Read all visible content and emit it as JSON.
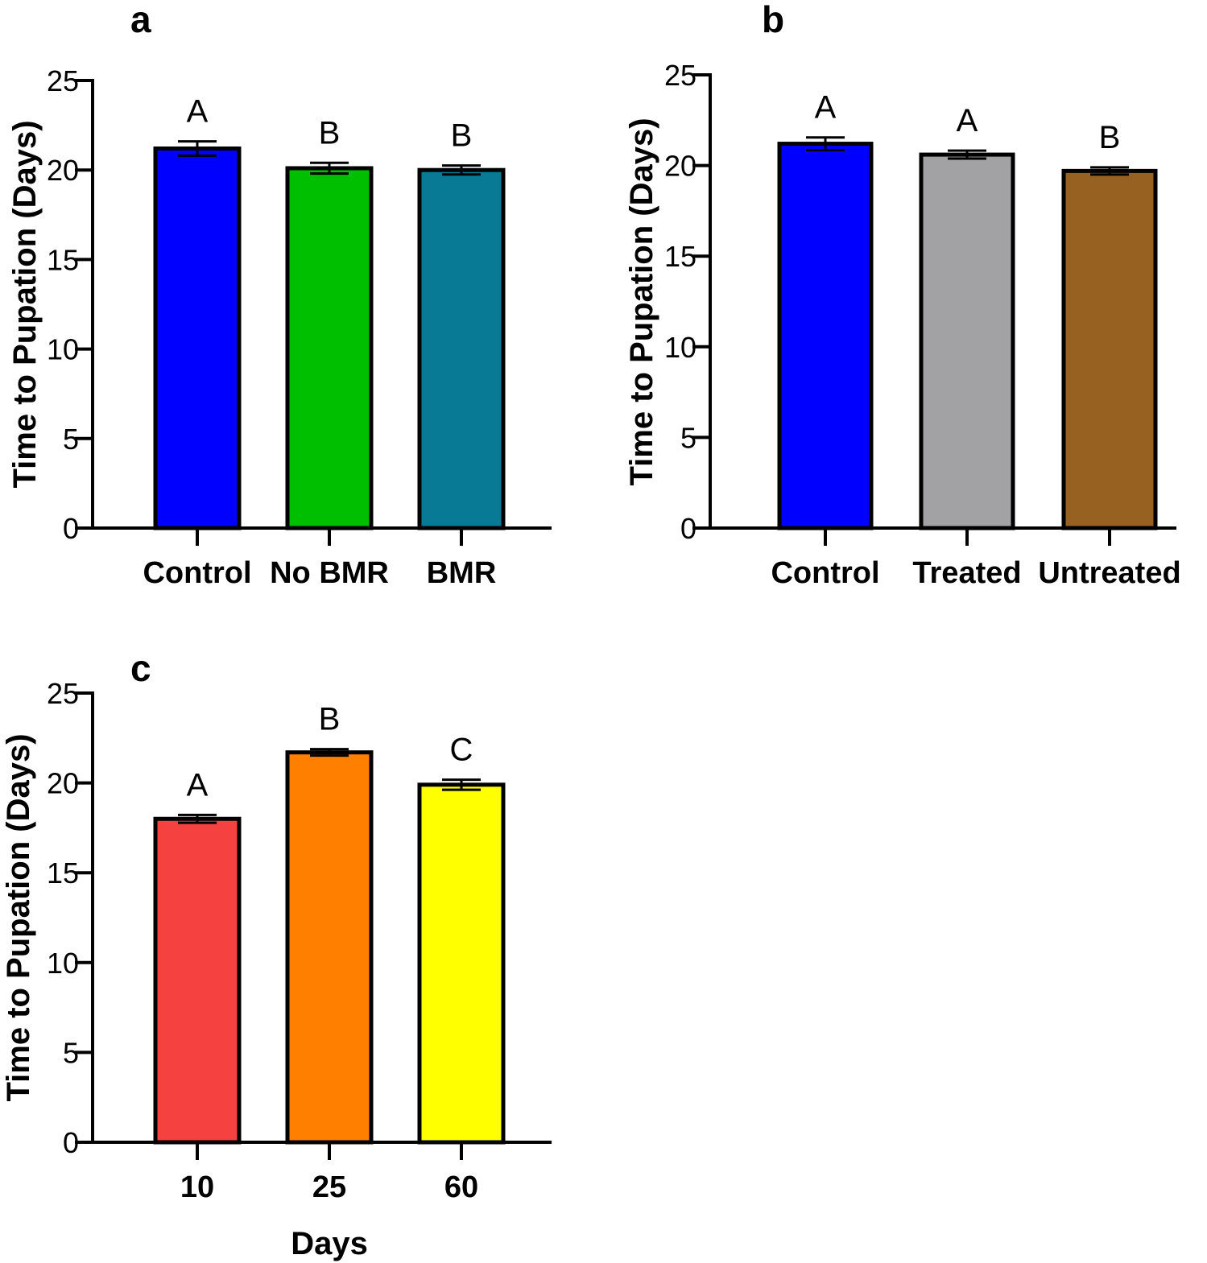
{
  "chart_data": [
    {
      "type": "bar",
      "panel": "a",
      "categories": [
        "Control",
        "No BMR",
        "BMR"
      ],
      "values": [
        21.2,
        20.1,
        20.0
      ],
      "errors": [
        0.4,
        0.3,
        0.25
      ],
      "significance": [
        "A",
        "B",
        "B"
      ],
      "colors": [
        "#0000ff",
        "#00bf00",
        "#087a96"
      ],
      "xlabel": "",
      "ylabel": "Time to Pupation (Days)",
      "ylim": [
        0,
        25
      ],
      "yticks": [
        0,
        5,
        10,
        15,
        20,
        25
      ],
      "grid": false
    },
    {
      "type": "bar",
      "panel": "b",
      "categories": [
        "Control",
        "Treated",
        "Untreated"
      ],
      "values": [
        21.2,
        20.6,
        19.7
      ],
      "errors": [
        0.35,
        0.22,
        0.2
      ],
      "significance": [
        "A",
        "A",
        "B"
      ],
      "colors": [
        "#0000ff",
        "#a2a2a5",
        "#966121"
      ],
      "xlabel": "",
      "ylabel": "Time to Pupation (Days)",
      "ylim": [
        0,
        25
      ],
      "yticks": [
        0,
        5,
        10,
        15,
        20,
        25
      ],
      "grid": false
    },
    {
      "type": "bar",
      "panel": "c",
      "categories": [
        "10",
        "25",
        "60"
      ],
      "values": [
        18.0,
        21.7,
        19.9
      ],
      "errors": [
        0.22,
        0.18,
        0.28
      ],
      "significance": [
        "A",
        "B",
        "C"
      ],
      "colors": [
        "#f64141",
        "#ff7f00",
        "#ffff00"
      ],
      "xlabel": "Days",
      "ylabel": "Time to Pupation (Days)",
      "ylim": [
        0,
        25
      ],
      "yticks": [
        0,
        5,
        10,
        15,
        20,
        25
      ],
      "grid": false
    }
  ]
}
